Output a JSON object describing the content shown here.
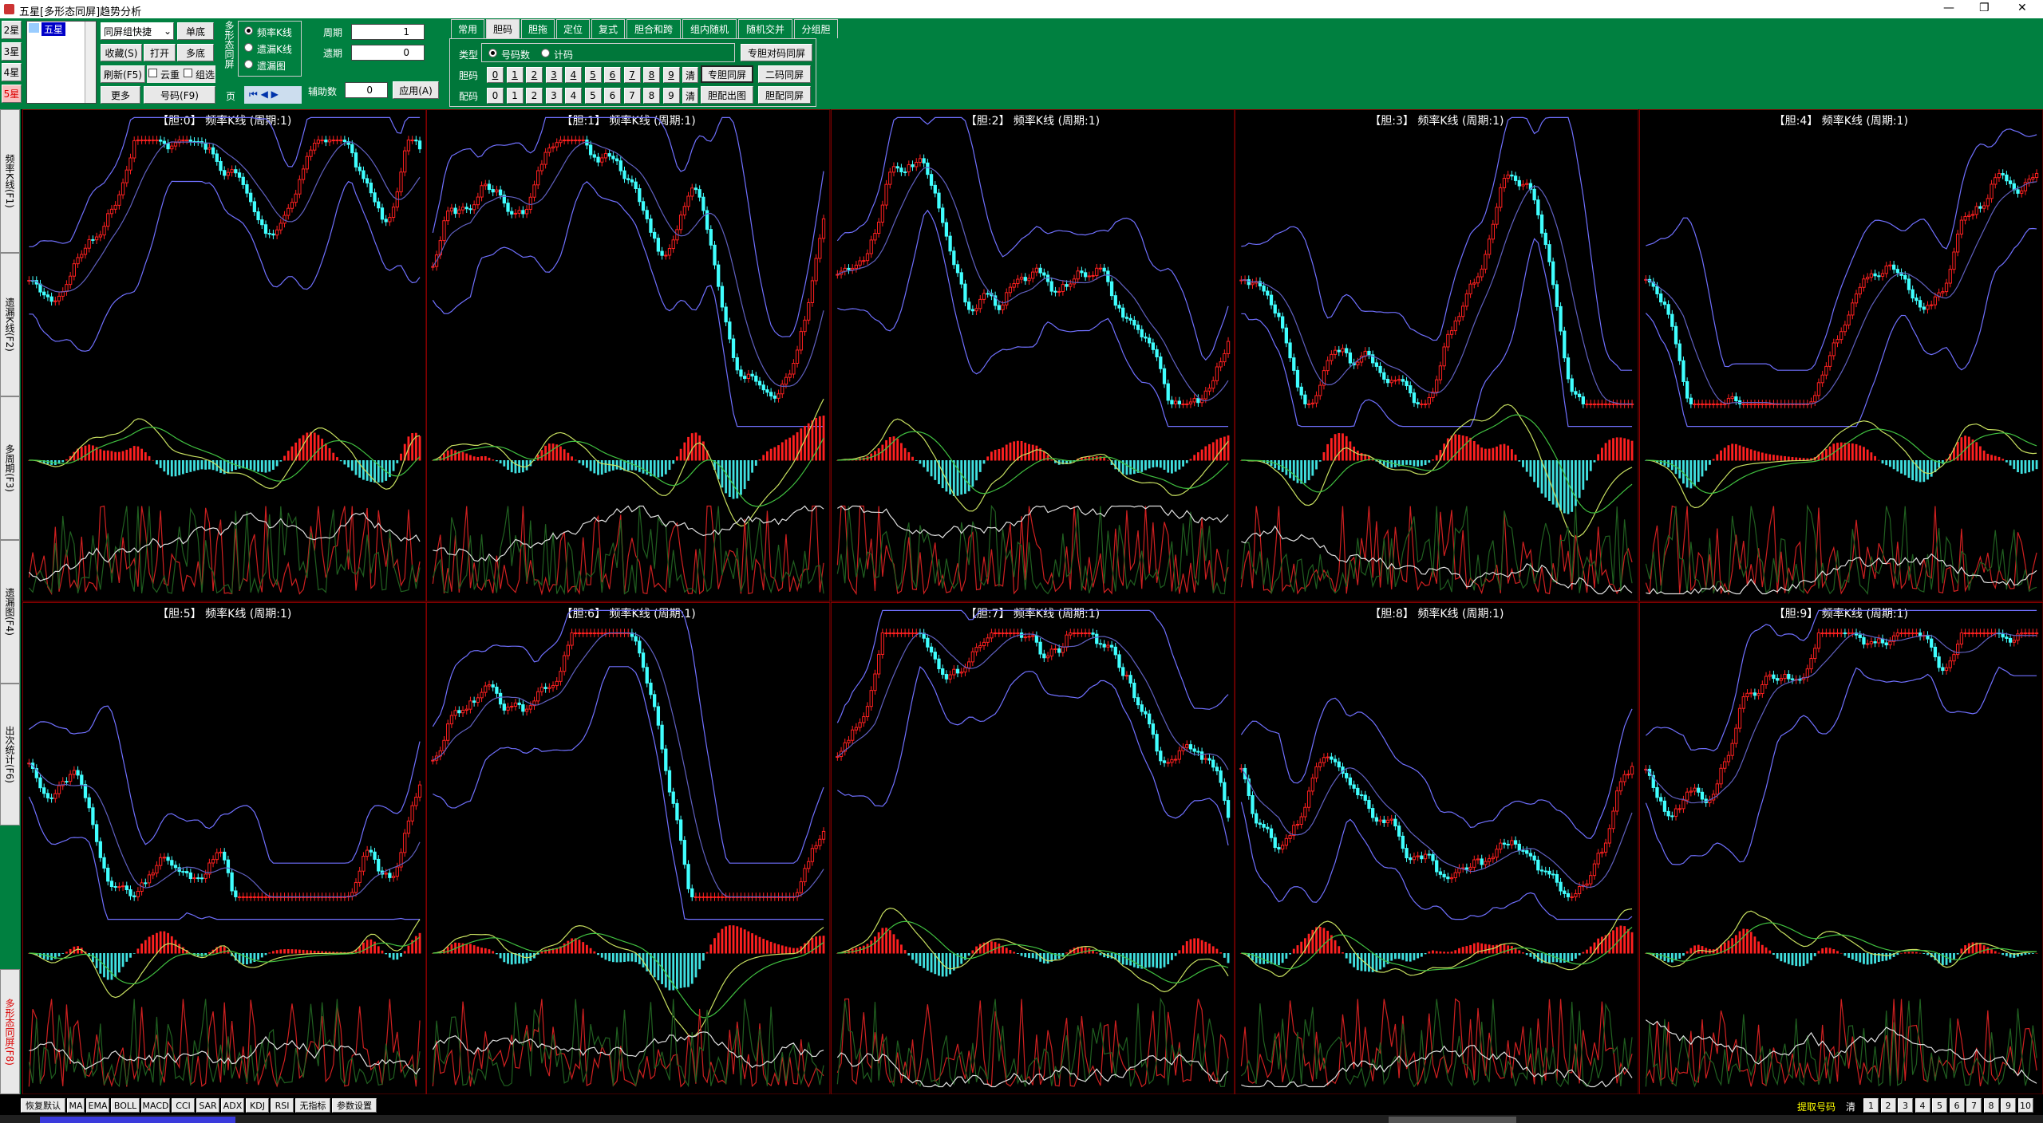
{
  "window": {
    "title": "五星[多形态同屏]趋势分析"
  },
  "toolbar": {
    "stars": [
      "2星",
      "3星",
      "4星",
      "5星"
    ],
    "list": [
      "五星"
    ],
    "combo": "同屏组快捷",
    "b_single": "单底",
    "b_fav": "收藏(S)",
    "b_open": "打开",
    "b_multi": "多底",
    "b_refresh": "刷新(F5)",
    "chk1": "云重",
    "chk2": "组选",
    "b_more": "更多",
    "b_num": "号码(F9)",
    "group_label": "多形态同屏",
    "radios": [
      "频率K线",
      "遗漏K线",
      "遗漏图"
    ],
    "page": "页",
    "period_label": "周期",
    "period_value": "1",
    "miss_label": "遗期",
    "miss_value": "0",
    "aux_label": "辅助数",
    "aux_value": "0",
    "apply": "应用(A)"
  },
  "tabs": [
    "常用",
    "胆码",
    "胆拖",
    "定位",
    "复式",
    "胆合和跨",
    "组内随机",
    "随机交并",
    "分组胆"
  ],
  "tabpanel": {
    "type_label": "类型",
    "type_radios": [
      "号码数",
      "计码"
    ],
    "b_pair_screen": "专胆对码同屏",
    "dan_label": "胆码",
    "pei_label": "配码",
    "digits": [
      "0",
      "1",
      "2",
      "3",
      "4",
      "5",
      "6",
      "7",
      "8",
      "9"
    ],
    "clear": "清",
    "b_dan_screen": "专胆同屏",
    "b_two_screen": "二码同屏",
    "b_pei_chart": "胆配出图",
    "b_pei_screen": "胆配同屏"
  },
  "side_tabs": [
    "频率K线(F1)",
    "遗漏K线(F2)",
    "多周期(F3)",
    "遗漏图(F4)",
    "出次统计(F6)",
    "多形态同屏(F8)"
  ],
  "panels": [
    "【胆:0】 频率K线 (周期:1)",
    "【胆:1】 频率K线 (周期:1)",
    "【胆:2】 频率K线 (周期:1)",
    "【胆:3】 频率K线 (周期:1)",
    "【胆:4】 频率K线 (周期:1)",
    "【胆:5】 频率K线 (周期:1)",
    "【胆:6】 频率K线 (周期:1)",
    "【胆:7】 频率K线 (周期:1)",
    "【胆:8】 频率K线 (周期:1)",
    "【胆:9】 频率K线 (周期:1)"
  ],
  "bottom": {
    "buttons": [
      "恢复默认",
      "MA",
      "EMA",
      "BOLL",
      "MACD",
      "CCI",
      "SAR",
      "ADX",
      "KDJ",
      "RSI",
      "无指标",
      "参数设置"
    ],
    "extract": "提取号码",
    "clear": "清",
    "numbers": [
      "1",
      "2",
      "3",
      "4",
      "5",
      "6",
      "7",
      "8",
      "9",
      "10"
    ]
  }
}
